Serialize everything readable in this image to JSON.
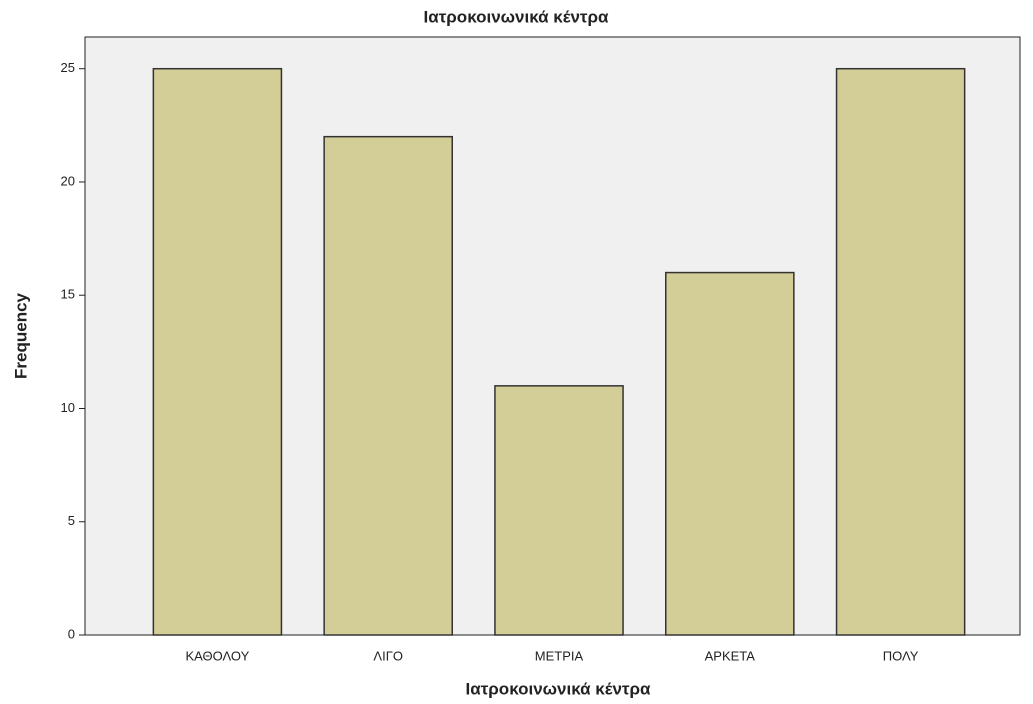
{
  "chart_data": {
    "type": "bar",
    "title": "Ιατροκοινωνικά κέντρα",
    "x_label": "Ιατροκοινωνικά κέντρα",
    "y_label": "Frequency",
    "categories": [
      "ΚΑΘΟΛΟΥ",
      "ΛΙΓΟ",
      "ΜΕΤΡΙΑ",
      "ΑΡΚΕΤΑ",
      "ΠΟΛΥ"
    ],
    "values": [
      25,
      22,
      11,
      16,
      25
    ],
    "color": "#d3ce97",
    "ylim": [
      0,
      26.4
    ],
    "yticks": [
      0,
      5,
      10,
      15,
      20,
      25
    ],
    "grid": false
  }
}
